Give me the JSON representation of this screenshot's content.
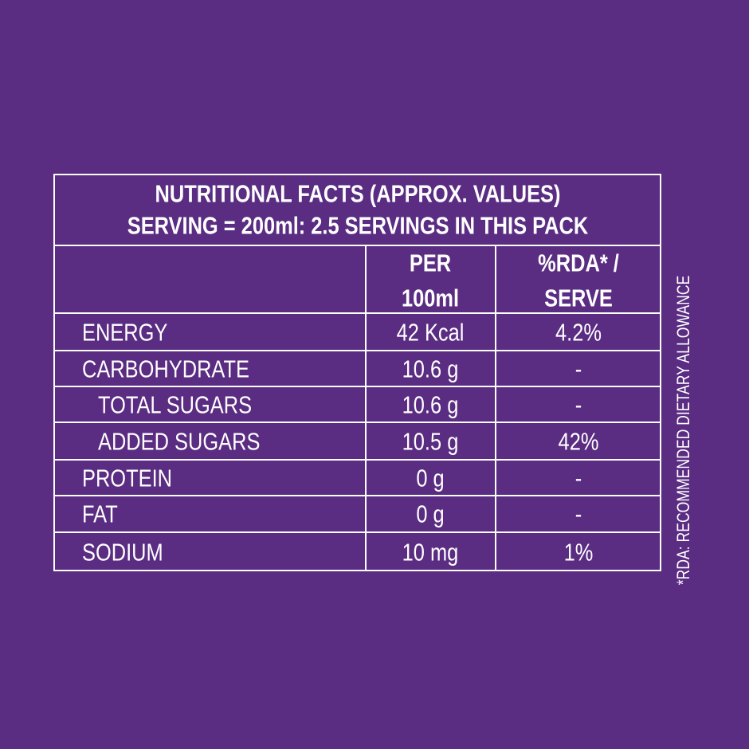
{
  "table": {
    "title": [
      "NUTRITIONAL FACTS  (APPROX. VALUES)",
      "SERVING = 200ml: 2.5 SERVINGS IN THIS PACK"
    ],
    "header": [
      [
        "PER",
        "100ml"
      ],
      [
        "%RDA* /",
        "SERVE"
      ]
    ],
    "rows": [
      [
        "ENERGY",
        "42 Kcal",
        "4.2%"
      ],
      [
        "CARBOHYDRATE",
        "10.6 g",
        "-"
      ],
      [
        "TOTAL SUGARS",
        "10.6 g",
        "-"
      ],
      [
        "ADDED SUGARS",
        "10.5 g",
        "42%"
      ],
      [
        "PROTEIN",
        "0 g",
        "-"
      ],
      [
        "FAT",
        "0 g",
        "-"
      ],
      [
        "SODIUM",
        "10 mg",
        "1%"
      ]
    ],
    "footnote": "*RDA: RECOMMENDED DIETARY ALLOWANCE"
  }
}
